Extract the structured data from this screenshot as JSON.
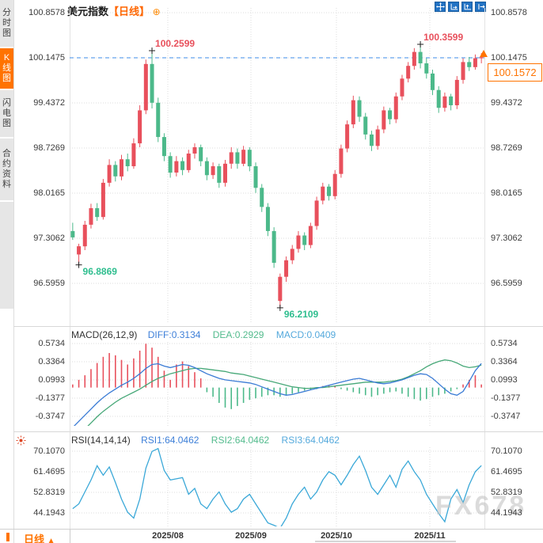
{
  "header": {
    "title": "美元指数",
    "period_tag": "【日线】",
    "add_icon": "⊕"
  },
  "toolbar": {
    "icons": [
      "pan",
      "fit-horizontal",
      "fit-vertical",
      "pop-out"
    ]
  },
  "sidebar": {
    "tabs": [
      {
        "label": "分时图",
        "active": false
      },
      {
        "label": "K线图",
        "active": true
      },
      {
        "label": "闪电图",
        "active": false
      },
      {
        "label": "合约资料",
        "active": false
      }
    ]
  },
  "main_chart": {
    "y_labels": [
      "100.8578",
      "100.1475",
      "99.4372",
      "98.7269",
      "98.0165",
      "97.3062",
      "96.5959"
    ],
    "dashed_line_value": "100.1475",
    "current_price": "100.1572"
  },
  "macd_panel": {
    "title": "MACD(26,12,9)",
    "diff_label": "DIFF:0.3134",
    "dea_label": "DEA:0.2929",
    "macd_label": "MACD:0.0409",
    "y_labels": [
      "0.5734",
      "0.3364",
      "0.0993",
      "-0.1377",
      "-0.3747"
    ]
  },
  "rsi_panel": {
    "title": "RSI(14,14,14)",
    "rsi1_label": "RSI1:64.0462",
    "rsi2_label": "RSI2:64.0462",
    "rsi3_label": "RSI3:64.0462",
    "y_labels": [
      "70.1070",
      "61.4695",
      "52.8319",
      "44.1943"
    ]
  },
  "x_axis_labels": [
    "2025/08",
    "2025/09",
    "2025/10",
    "2025/11"
  ],
  "bottom_bar": {
    "period": "日线",
    "arrow": "▲"
  },
  "watermark": "FX678",
  "colors": {
    "up": "#e8505c",
    "down": "#4cb98a",
    "diff_line": "#3a7bd5",
    "dea_line": "#47a878",
    "rsi_line": "#3aa8d8",
    "dashed_blue": "#3d8ee8",
    "accent_orange": "#ff7300",
    "annotation_high": "#e8505c",
    "annotation_low": "#2fbe8f",
    "grid": "#dcdcdc"
  },
  "chart_data": {
    "type": "candlestick",
    "title": "美元指数 日线",
    "main_axis": {
      "labels": [
        100.8578,
        100.1475,
        99.4372,
        98.7269,
        98.0165,
        97.3062,
        96.5959
      ],
      "dashed_level": 100.1475,
      "last_price": 100.1572
    },
    "x_ticks": [
      "2025/08",
      "2025/09",
      "2025/10",
      "2025/11"
    ],
    "candles_ohlc": [
      [
        97.42,
        97.55,
        97.28,
        97.32
      ],
      [
        97.05,
        97.22,
        96.8869,
        97.18
      ],
      [
        97.18,
        97.58,
        97.12,
        97.52
      ],
      [
        97.52,
        97.85,
        97.46,
        97.78
      ],
      [
        97.78,
        97.86,
        97.58,
        97.64
      ],
      [
        97.64,
        98.24,
        97.6,
        98.18
      ],
      [
        98.18,
        98.55,
        98.12,
        98.46
      ],
      [
        98.46,
        98.52,
        98.2,
        98.28
      ],
      [
        98.28,
        98.62,
        98.22,
        98.55
      ],
      [
        98.55,
        98.64,
        98.36,
        98.44
      ],
      [
        98.44,
        98.88,
        98.4,
        98.8
      ],
      [
        98.8,
        99.4,
        98.74,
        99.32
      ],
      [
        99.32,
        100.12,
        99.26,
        100.05
      ],
      [
        100.05,
        100.2599,
        99.35,
        99.44
      ],
      [
        99.44,
        99.52,
        98.82,
        98.9
      ],
      [
        98.9,
        98.96,
        98.52,
        98.6
      ],
      [
        98.6,
        98.66,
        98.26,
        98.34
      ],
      [
        98.34,
        98.6,
        98.28,
        98.52
      ],
      [
        98.52,
        98.58,
        98.3,
        98.38
      ],
      [
        98.38,
        98.7,
        98.34,
        98.64
      ],
      [
        98.64,
        98.8,
        98.56,
        98.74
      ],
      [
        98.74,
        98.78,
        98.44,
        98.52
      ],
      [
        98.52,
        98.58,
        98.22,
        98.3
      ],
      [
        98.3,
        98.5,
        98.24,
        98.44
      ],
      [
        98.44,
        98.48,
        98.1,
        98.18
      ],
      [
        98.18,
        98.54,
        98.12,
        98.48
      ],
      [
        98.48,
        98.74,
        98.4,
        98.66
      ],
      [
        98.66,
        98.72,
        98.4,
        98.48
      ],
      [
        98.48,
        98.76,
        98.44,
        98.7
      ],
      [
        98.7,
        98.74,
        98.36,
        98.44
      ],
      [
        98.44,
        98.5,
        98.02,
        98.1
      ],
      [
        98.1,
        98.16,
        97.72,
        97.8
      ],
      [
        97.8,
        97.86,
        97.34,
        97.42
      ],
      [
        97.42,
        97.48,
        96.84,
        96.92
      ],
      [
        96.32,
        96.75,
        96.2109,
        96.7
      ],
      [
        96.7,
        97.02,
        96.62,
        96.96
      ],
      [
        96.96,
        97.2,
        96.9,
        97.14
      ],
      [
        97.14,
        97.42,
        97.08,
        97.35
      ],
      [
        97.35,
        97.4,
        97.12,
        97.2
      ],
      [
        97.2,
        97.55,
        97.15,
        97.5
      ],
      [
        97.5,
        97.96,
        97.44,
        97.9
      ],
      [
        97.9,
        98.18,
        97.84,
        98.12
      ],
      [
        98.12,
        98.16,
        97.9,
        97.97
      ],
      [
        97.97,
        98.38,
        97.92,
        98.32
      ],
      [
        98.32,
        98.78,
        98.26,
        98.72
      ],
      [
        98.72,
        99.16,
        98.66,
        99.1
      ],
      [
        99.1,
        99.55,
        99.04,
        99.48
      ],
      [
        99.48,
        99.54,
        99.14,
        99.22
      ],
      [
        99.22,
        99.28,
        98.86,
        98.94
      ],
      [
        98.94,
        99.0,
        98.68,
        98.76
      ],
      [
        98.76,
        99.08,
        98.7,
        99.02
      ],
      [
        99.02,
        99.38,
        98.96,
        99.32
      ],
      [
        99.32,
        99.36,
        99.1,
        99.18
      ],
      [
        99.18,
        99.6,
        99.12,
        99.54
      ],
      [
        99.54,
        99.88,
        99.48,
        99.82
      ],
      [
        99.82,
        100.08,
        99.76,
        100.02
      ],
      [
        100.02,
        100.3,
        99.96,
        100.24
      ],
      [
        100.24,
        100.3599,
        99.98,
        100.06
      ],
      [
        100.06,
        100.14,
        99.82,
        99.9
      ],
      [
        99.9,
        99.96,
        99.56,
        99.64
      ],
      [
        99.64,
        99.7,
        99.28,
        99.36
      ],
      [
        99.36,
        99.6,
        99.3,
        99.54
      ],
      [
        99.54,
        99.58,
        99.32,
        99.4
      ],
      [
        99.4,
        99.86,
        99.34,
        99.8
      ],
      [
        99.8,
        100.14,
        99.74,
        100.08
      ],
      [
        100.08,
        100.16,
        99.94,
        100.0
      ],
      [
        100.0,
        100.2,
        99.96,
        100.14
      ],
      [
        100.14,
        100.22,
        100.06,
        100.1572
      ]
    ],
    "annotations": [
      {
        "label": "100.2599",
        "price": 100.2599,
        "candle": 13,
        "kind": "high"
      },
      {
        "label": "100.3599",
        "price": 100.3599,
        "candle": 57,
        "kind": "high"
      },
      {
        "label": "96.8869",
        "price": 96.8869,
        "candle": 1,
        "kind": "low"
      },
      {
        "label": "96.2109",
        "price": 96.2109,
        "candle": 34,
        "kind": "low"
      }
    ],
    "macd": {
      "params": [
        26,
        12,
        9
      ],
      "diff_value": 0.3134,
      "dea_value": 0.2929,
      "macd_value": 0.0409,
      "axis": [
        0.5734,
        0.3364,
        0.0993,
        -0.1377,
        -0.3747
      ],
      "histogram": [
        0.04,
        0.1,
        0.16,
        0.24,
        0.32,
        0.4,
        0.45,
        0.42,
        0.36,
        0.3,
        0.38,
        0.48,
        0.57,
        0.52,
        0.4,
        0.22,
        0.1,
        0.3,
        0.34,
        0.28,
        0.2,
        0.12,
        -0.06,
        -0.12,
        -0.2,
        -0.26,
        -0.28,
        -0.24,
        -0.2,
        -0.16,
        -0.14,
        -0.12,
        -0.1,
        -0.1,
        -0.12,
        -0.1,
        -0.08,
        -0.06,
        -0.04,
        -0.03,
        -0.02,
        0.02,
        0.03,
        0.02,
        -0.02,
        -0.04,
        -0.06,
        -0.08,
        -0.1,
        -0.12,
        -0.1,
        -0.08,
        -0.06,
        -0.05,
        -0.08,
        -0.12,
        -0.15,
        -0.17,
        -0.15,
        -0.12,
        -0.1,
        -0.08,
        -0.05,
        -0.02,
        0.04,
        0.1,
        0.16,
        0.04
      ],
      "diff": [
        -0.52,
        -0.44,
        -0.36,
        -0.28,
        -0.2,
        -0.13,
        -0.07,
        -0.02,
        0.03,
        0.07,
        0.12,
        0.18,
        0.25,
        0.3,
        0.31,
        0.28,
        0.26,
        0.28,
        0.3,
        0.29,
        0.26,
        0.22,
        0.18,
        0.15,
        0.12,
        0.1,
        0.09,
        0.08,
        0.07,
        0.06,
        0.04,
        0.01,
        -0.02,
        -0.05,
        -0.08,
        -0.1,
        -0.09,
        -0.07,
        -0.05,
        -0.03,
        -0.01,
        0.01,
        0.03,
        0.05,
        0.07,
        0.09,
        0.11,
        0.12,
        0.1,
        0.08,
        0.06,
        0.05,
        0.06,
        0.08,
        0.1,
        0.13,
        0.16,
        0.18,
        0.17,
        0.12,
        0.05,
        -0.02,
        -0.08,
        -0.1,
        -0.05,
        0.08,
        0.22,
        0.3134
      ],
      "dea": [
        -0.7,
        -0.62,
        -0.54,
        -0.46,
        -0.38,
        -0.31,
        -0.25,
        -0.19,
        -0.14,
        -0.1,
        -0.06,
        -0.02,
        0.03,
        0.08,
        0.12,
        0.15,
        0.18,
        0.2,
        0.22,
        0.24,
        0.25,
        0.25,
        0.24,
        0.23,
        0.22,
        0.21,
        0.19,
        0.18,
        0.17,
        0.15,
        0.13,
        0.11,
        0.09,
        0.07,
        0.05,
        0.03,
        0.01,
        0.0,
        -0.01,
        -0.01,
        0.0,
        0.0,
        0.01,
        0.02,
        0.03,
        0.04,
        0.05,
        0.06,
        0.07,
        0.07,
        0.07,
        0.07,
        0.08,
        0.09,
        0.11,
        0.14,
        0.18,
        0.22,
        0.27,
        0.31,
        0.34,
        0.36,
        0.35,
        0.32,
        0.28,
        0.26,
        0.27,
        0.2929
      ]
    },
    "rsi": {
      "params": [
        14,
        14,
        14
      ],
      "rsi1_value": 64.0462,
      "rsi2_value": 64.0462,
      "rsi3_value": 64.0462,
      "axis": [
        70.107,
        61.4695,
        52.8319,
        44.1943
      ],
      "values": [
        46,
        48,
        53,
        58,
        64,
        60,
        63.5,
        57,
        50,
        44.5,
        42,
        50,
        63,
        70,
        71.2,
        62,
        58,
        58.5,
        59,
        52,
        54.5,
        48,
        46,
        50,
        53,
        48,
        44.5,
        46,
        50,
        52,
        48,
        44,
        40,
        39,
        37.8,
        42,
        48,
        52,
        55,
        50,
        53,
        58,
        61.5,
        60,
        56,
        60,
        64.5,
        68,
        62,
        55,
        52,
        56,
        60,
        55,
        62.5,
        66,
        61.5,
        58,
        52,
        48,
        44,
        40.5,
        50,
        54,
        48.5,
        56,
        61.5,
        64.0462
      ]
    }
  }
}
